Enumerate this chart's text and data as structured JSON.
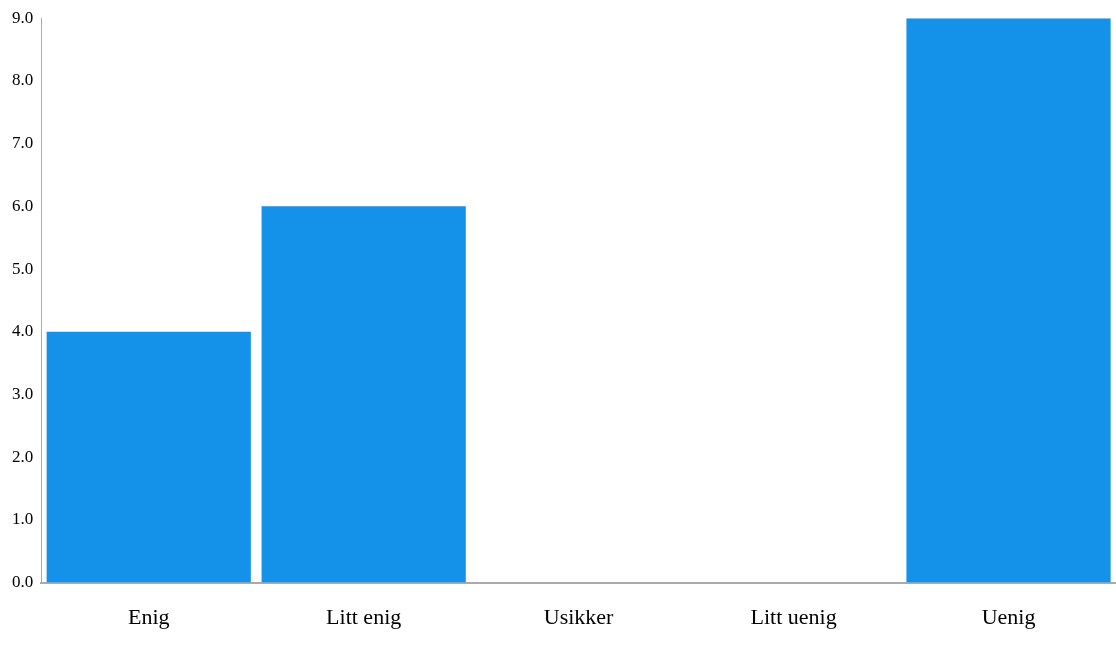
{
  "chart_data": {
    "type": "bar",
    "categories": [
      "Enig",
      "Litt enig",
      "Usikker",
      "Litt uenig",
      "Uenig"
    ],
    "values": [
      4,
      6,
      0,
      0,
      9
    ],
    "color": "#1491e8",
    "ylim": [
      0,
      9
    ],
    "yticks": [
      {
        "value": 0,
        "label": "0.0"
      },
      {
        "value": 1,
        "label": "1.0"
      },
      {
        "value": 2,
        "label": "2.0"
      },
      {
        "value": 3,
        "label": "3.0"
      },
      {
        "value": 4,
        "label": "4.0"
      },
      {
        "value": 5,
        "label": "5.0"
      },
      {
        "value": 6,
        "label": "6.0"
      },
      {
        "value": 7,
        "label": "7.0"
      },
      {
        "value": 8,
        "label": "8.0"
      },
      {
        "value": 9,
        "label": "9.0"
      }
    ],
    "grid": false,
    "legend": false
  }
}
